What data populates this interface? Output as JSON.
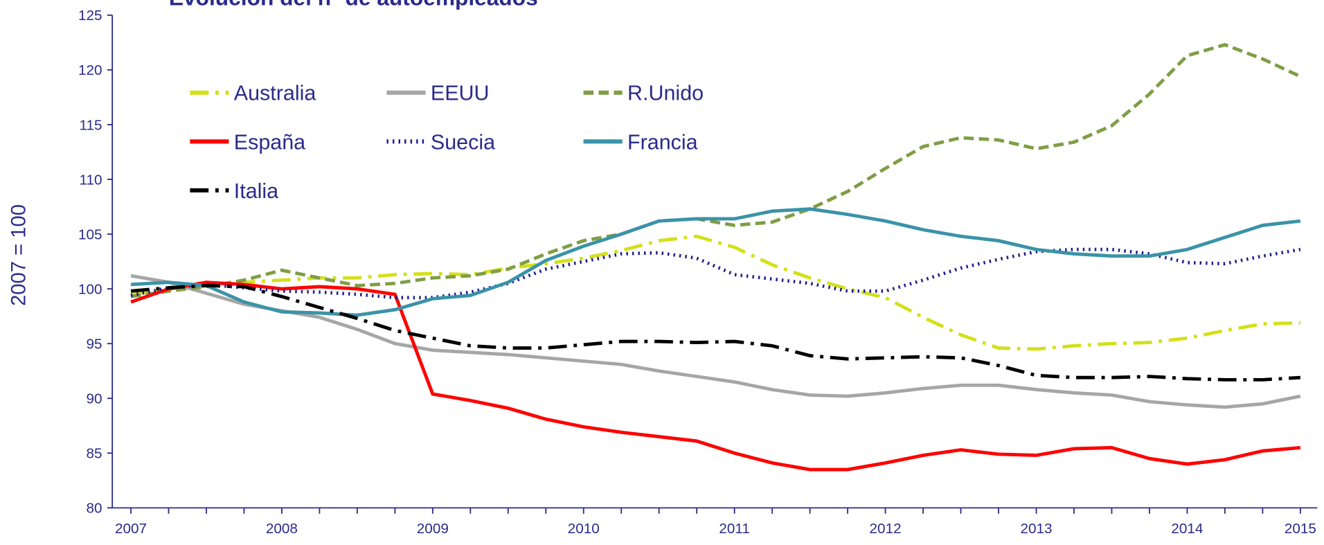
{
  "chart_data": {
    "type": "line",
    "title": "Evolución del nº de autoempleados",
    "y_label": "2007 = 100",
    "categories": [
      "2007",
      null,
      null,
      null,
      "2008",
      null,
      null,
      null,
      "2009",
      null,
      null,
      null,
      "2010",
      null,
      null,
      null,
      "2011",
      null,
      null,
      null,
      "2012",
      null,
      null,
      null,
      "2013",
      null,
      null,
      null,
      "2014",
      null,
      null,
      "2015"
    ],
    "ylim": [
      80,
      125
    ],
    "yticks": [
      80,
      85,
      90,
      95,
      100,
      105,
      110,
      115,
      120,
      125
    ],
    "legend": "upper left",
    "series": [
      {
        "name": "Australia",
        "color": "#d4e01a",
        "dash": "dashdot",
        "values": [
          99.5,
          100,
          100.3,
          100.6,
          100.8,
          101,
          101,
          101.3,
          101.4,
          101.3,
          101.9,
          102.3,
          102.8,
          103.5,
          104.4,
          104.8,
          103.8,
          102.2,
          101,
          100,
          99.2,
          97.4,
          95.8,
          94.6,
          94.5,
          94.8,
          95,
          95.1,
          95.5,
          96.2,
          96.8,
          96.9
        ]
      },
      {
        "name": "EEUU",
        "color": "#a6a6a6",
        "dash": "solid",
        "values": [
          101.2,
          100.6,
          99.6,
          98.6,
          98.0,
          97.4,
          96.3,
          95.0,
          94.4,
          94.2,
          94.0,
          93.7,
          93.4,
          93.1,
          92.5,
          92.0,
          91.5,
          90.8,
          90.3,
          90.2,
          90.5,
          90.9,
          91.2,
          91.2,
          90.8,
          90.5,
          90.3,
          89.7,
          89.4,
          89.2,
          89.5,
          90.2
        ]
      },
      {
        "name": "R.Unido",
        "color": "#7f9e45",
        "dash": "dashed",
        "values": [
          99.3,
          99.8,
          100.2,
          100.8,
          101.7,
          101.0,
          100.3,
          100.5,
          101.0,
          101.2,
          101.8,
          103.2,
          104.4,
          105.0,
          106.2,
          106.4,
          105.8,
          106.1,
          107.3,
          108.9,
          111.0,
          113.0,
          113.8,
          113.6,
          112.8,
          113.4,
          114.9,
          117.8,
          121.3,
          122.3,
          121.0,
          119.4
        ]
      },
      {
        "name": "España",
        "color": "#ff0000",
        "dash": "solid",
        "values": [
          98.8,
          100,
          100.6,
          100.4,
          100,
          100.2,
          100,
          99.5,
          90.4,
          89.8,
          89.1,
          88.1,
          87.4,
          86.9,
          86.5,
          86.1,
          85,
          84.1,
          83.5,
          83.5,
          84.1,
          84.8,
          85.3,
          84.9,
          84.8,
          85.4,
          85.5,
          84.5,
          84,
          84.4,
          85.2,
          85.5
        ]
      },
      {
        "name": "Suecia",
        "color": "#1c1c8c",
        "dash": "dotted",
        "values": [
          99.4,
          100.1,
          100.4,
          100.1,
          99.8,
          99.7,
          99.5,
          99.2,
          99.2,
          99.7,
          100.5,
          101.8,
          102.5,
          103.2,
          103.3,
          102.8,
          101.3,
          100.9,
          100.5,
          99.8,
          99.8,
          100.8,
          101.9,
          102.7,
          103.4,
          103.6,
          103.6,
          103.2,
          102.4,
          102.3,
          103.0,
          103.6
        ]
      },
      {
        "name": "Francia",
        "color": "#3a93a8",
        "dash": "solid",
        "values": [
          100.4,
          100.6,
          100.3,
          98.8,
          97.9,
          97.8,
          97.6,
          98.1,
          99.1,
          99.4,
          100.6,
          102.6,
          103.9,
          105.0,
          106.2,
          106.4,
          106.4,
          107.1,
          107.3,
          106.8,
          106.2,
          105.4,
          104.8,
          104.4,
          103.6,
          103.2,
          103.0,
          103.0,
          103.6,
          104.7,
          105.8,
          106.2
        ]
      },
      {
        "name": "Italia",
        "color": "#000000",
        "dash": "dashdot",
        "values": [
          99.8,
          100.1,
          100.3,
          100.2,
          99.3,
          98.3,
          97.3,
          96.2,
          95.5,
          94.8,
          94.6,
          94.6,
          94.9,
          95.2,
          95.2,
          95.1,
          95.2,
          94.8,
          93.9,
          93.6,
          93.7,
          93.8,
          93.7,
          93.0,
          92.1,
          91.9,
          91.9,
          92.0,
          91.8,
          91.7,
          91.7,
          91.9
        ]
      }
    ]
  }
}
